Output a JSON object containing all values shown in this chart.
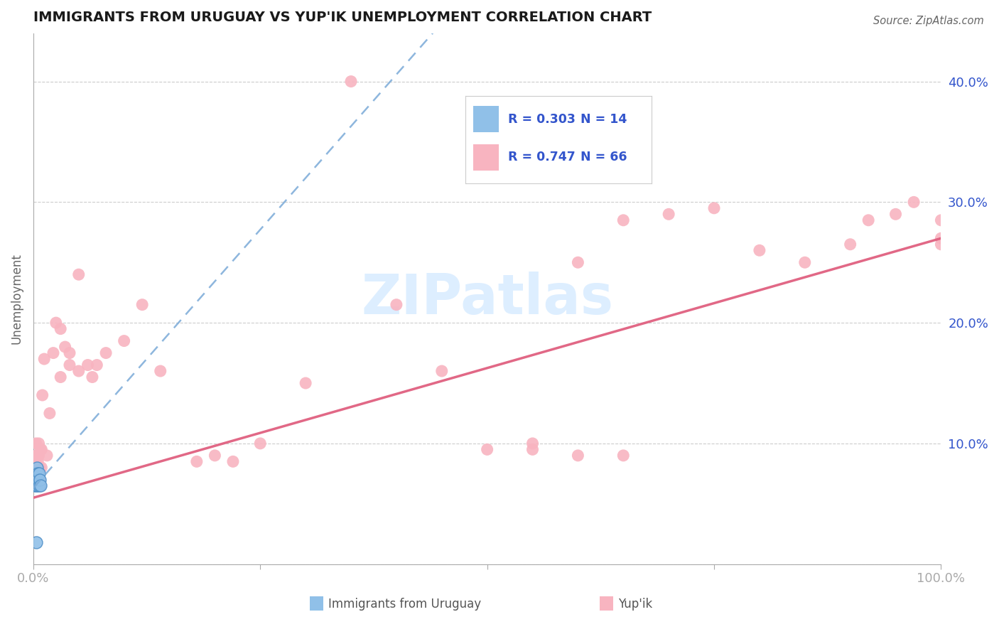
{
  "title": "IMMIGRANTS FROM URUGUAY VS YUP'IK UNEMPLOYMENT CORRELATION CHART",
  "source": "Source: ZipAtlas.com",
  "ylabel": "Unemployment",
  "xlim": [
    0.0,
    1.0
  ],
  "ylim": [
    0.0,
    0.44
  ],
  "series1_label": "Immigrants from Uruguay",
  "series1_R": "0.303",
  "series1_N": "14",
  "series1_color": "#90C0E8",
  "series1_edge_color": "#5090C8",
  "series1_line_color": "#7AAAD8",
  "series2_label": "Yup'ik",
  "series2_R": "0.747",
  "series2_N": "66",
  "series2_color": "#F8B4C0",
  "series2_line_color": "#E06080",
  "background_color": "#ffffff",
  "grid_color": "#cccccc",
  "axis_label_color": "#3355cc",
  "watermark_color": "#ddeeff",
  "series1_x": [
    0.001,
    0.002,
    0.002,
    0.003,
    0.003,
    0.004,
    0.004,
    0.005,
    0.005,
    0.006,
    0.006,
    0.007,
    0.008,
    0.003
  ],
  "series1_y": [
    0.065,
    0.07,
    0.075,
    0.065,
    0.07,
    0.065,
    0.08,
    0.075,
    0.07,
    0.065,
    0.075,
    0.07,
    0.065,
    0.018
  ],
  "series2_x": [
    0.001,
    0.002,
    0.002,
    0.003,
    0.003,
    0.003,
    0.004,
    0.004,
    0.004,
    0.005,
    0.005,
    0.005,
    0.006,
    0.006,
    0.007,
    0.007,
    0.008,
    0.008,
    0.009,
    0.009,
    0.01,
    0.012,
    0.015,
    0.018,
    0.022,
    0.025,
    0.03,
    0.03,
    0.035,
    0.04,
    0.04,
    0.05,
    0.05,
    0.06,
    0.065,
    0.07,
    0.08,
    0.1,
    0.12,
    0.14,
    0.18,
    0.2,
    0.22,
    0.25,
    0.3,
    0.35,
    0.4,
    0.45,
    0.5,
    0.55,
    0.6,
    0.65,
    0.7,
    0.75,
    0.8,
    0.85,
    0.9,
    0.92,
    0.95,
    0.97,
    1.0,
    1.0,
    1.0,
    0.55,
    0.6,
    0.65
  ],
  "series2_y": [
    0.065,
    0.07,
    0.08,
    0.08,
    0.09,
    0.1,
    0.07,
    0.08,
    0.09,
    0.065,
    0.075,
    0.085,
    0.09,
    0.1,
    0.07,
    0.08,
    0.065,
    0.095,
    0.08,
    0.095,
    0.14,
    0.17,
    0.09,
    0.125,
    0.175,
    0.2,
    0.195,
    0.155,
    0.18,
    0.175,
    0.165,
    0.16,
    0.24,
    0.165,
    0.155,
    0.165,
    0.175,
    0.185,
    0.215,
    0.16,
    0.085,
    0.09,
    0.085,
    0.1,
    0.15,
    0.4,
    0.215,
    0.16,
    0.095,
    0.095,
    0.25,
    0.285,
    0.29,
    0.295,
    0.26,
    0.25,
    0.265,
    0.285,
    0.29,
    0.3,
    0.27,
    0.285,
    0.265,
    0.1,
    0.09,
    0.09
  ],
  "trendline1_x0": 0.0,
  "trendline1_y0": 0.063,
  "trendline1_x1": 0.44,
  "trendline1_y1": 0.44,
  "trendline2_x0": 0.0,
  "trendline2_y0": 0.055,
  "trendline2_x1": 1.0,
  "trendline2_y1": 0.27
}
